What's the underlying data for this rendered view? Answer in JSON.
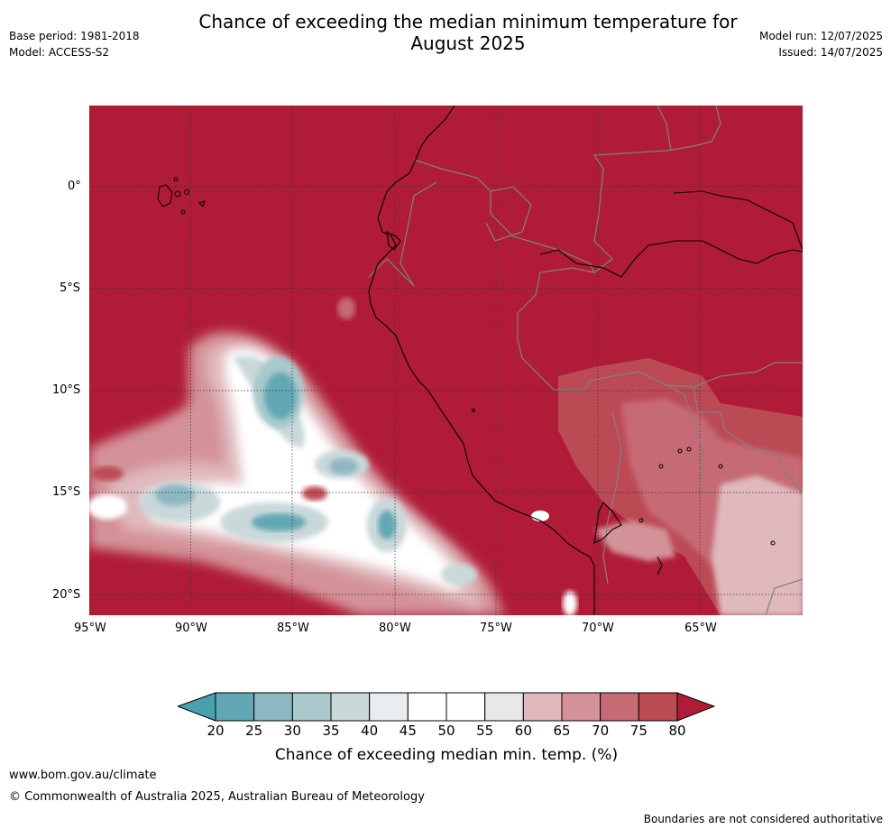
{
  "header": {
    "title_line1": "Chance of exceeding the median minimum temperature for",
    "title_line2": "August 2025",
    "base_period": "Base period: 1981-2018",
    "model": "Model: ACCESS-S2",
    "model_run": "Model run: 12/07/2025",
    "issued": "Issued: 14/07/2025"
  },
  "map": {
    "lat_labels": [
      "0°",
      "5°S",
      "10°S",
      "15°S",
      "20°S"
    ],
    "lon_labels": [
      "95°W",
      "90°W",
      "85°W",
      "80°W",
      "75°W",
      "70°W",
      "65°W"
    ],
    "land_ocean_fill": "#b01c38",
    "coast_color": "#000000",
    "border_color": "#808080"
  },
  "colorbar": {
    "ticks": [
      "20",
      "25",
      "30",
      "35",
      "40",
      "45",
      "50",
      "55",
      "60",
      "65",
      "70",
      "75",
      "80"
    ],
    "colors": [
      "#62a8b4",
      "#8cb8c3",
      "#a9c9cc",
      "#c9d8d9",
      "#e8eef0",
      "#ffffff",
      "#ffffff",
      "#e8e8e8",
      "#dfb9bd",
      "#d39298",
      "#c66a74",
      "#bc4a55"
    ],
    "under_color": "#4aa0ae",
    "over_color": "#b01c38",
    "label": "Chance of exceeding median min. temp. (%)"
  },
  "footer": {
    "website": "www.bom.gov.au/climate",
    "copyright": "© Commonwealth of Australia 2025, Australian Bureau of Meteorology",
    "disclaimer": "Boundaries are not considered authoritative"
  }
}
